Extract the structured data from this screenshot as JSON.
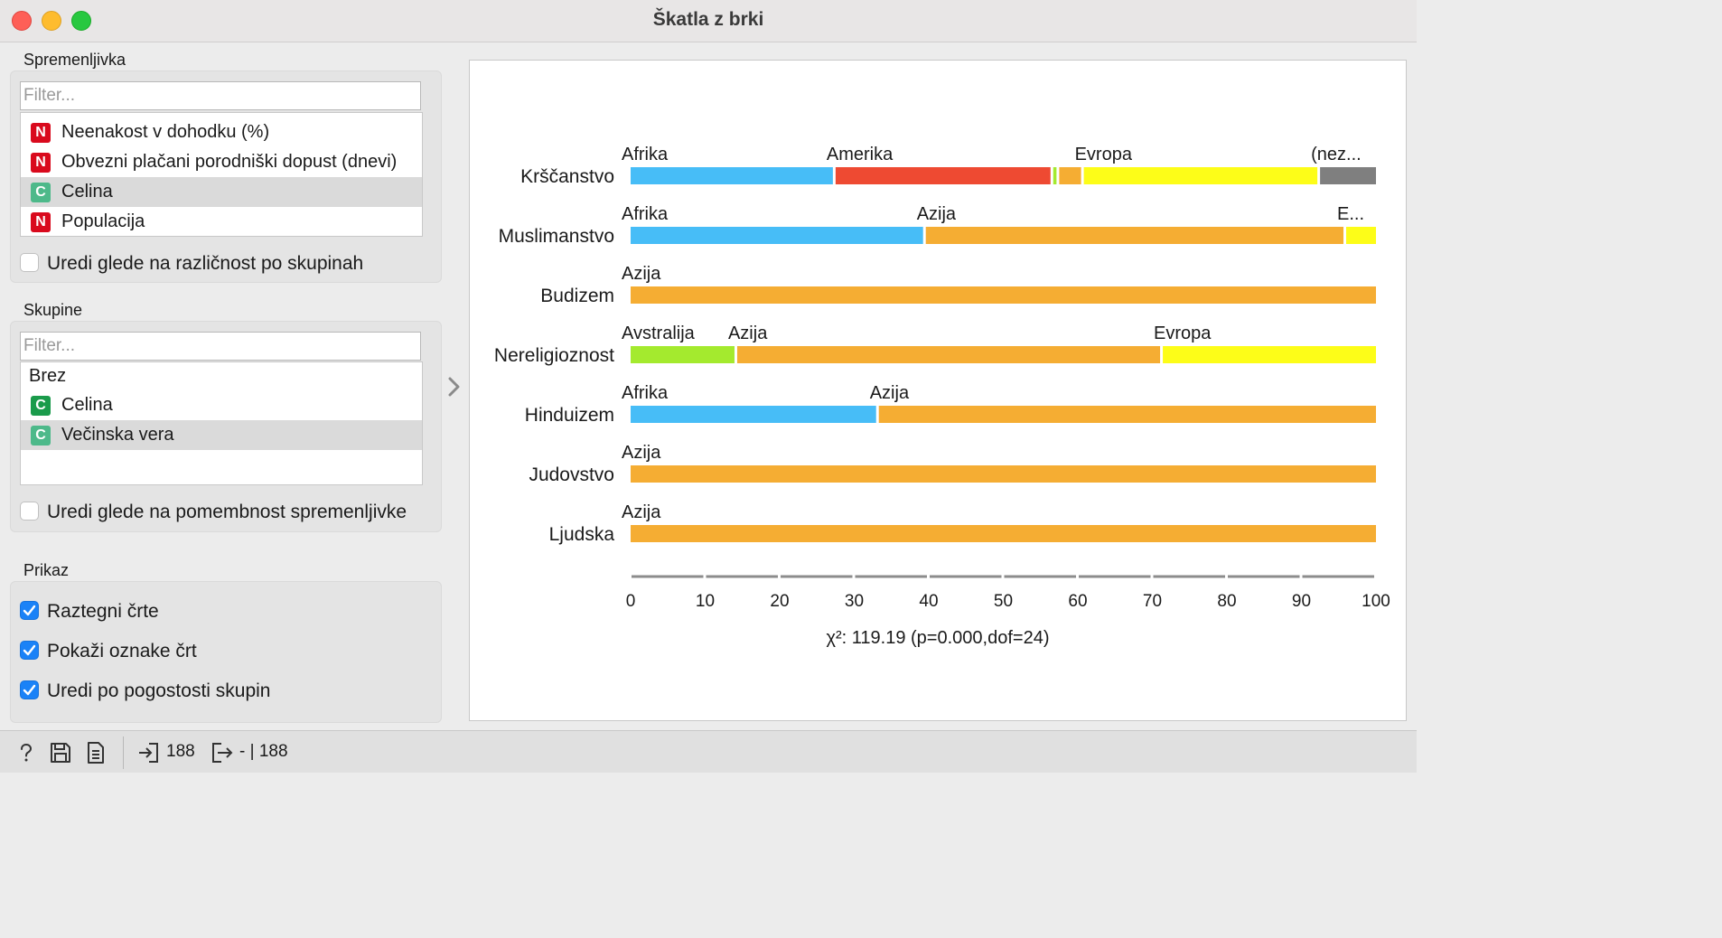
{
  "window": {
    "title": "Škatla z brki"
  },
  "variable_section": {
    "label": "Spremenljivka",
    "filter_placeholder": "Filter...",
    "items": [
      {
        "type": "N",
        "label": "Neenakost v dohodku (%)",
        "selected": false
      },
      {
        "type": "N",
        "label": "Obvezni plačani porodniški dopust (dnevi)",
        "selected": false
      },
      {
        "type": "C",
        "label": "Celina",
        "selected": true
      },
      {
        "type": "N",
        "label": "Populacija",
        "selected": false
      }
    ],
    "order_checkbox": {
      "label": "Uredi glede na različnost po skupinah",
      "checked": false
    }
  },
  "groups_section": {
    "label": "Skupine",
    "filter_placeholder": "Filter...",
    "items": [
      {
        "type": "",
        "label": "Brez",
        "selected": false
      },
      {
        "type": "C",
        "label": "Celina",
        "selected": false
      },
      {
        "type": "C",
        "label": "Večinska vera",
        "selected": true
      }
    ],
    "order_checkbox": {
      "label": "Uredi glede na pomembnost spremenljivke",
      "checked": false
    }
  },
  "display_section": {
    "label": "Prikaz",
    "checkboxes": [
      {
        "label": "Raztegni črte",
        "checked": true
      },
      {
        "label": "Pokaži oznake črt",
        "checked": true
      },
      {
        "label": "Uredi po pogostosti skupin",
        "checked": true
      }
    ]
  },
  "chart_data": {
    "type": "bar",
    "orientation": "horizontal",
    "stacked": true,
    "xlim": [
      0,
      100
    ],
    "ticks": [
      "0",
      "10",
      "20",
      "30",
      "40",
      "50",
      "60",
      "70",
      "80",
      "90",
      "100"
    ],
    "statistic": "χ²: 119.19 (p=0.000,dof=24)",
    "colors": {
      "Afrika": "#47bdf7",
      "Amerika": "#ee4a32",
      "Avstralija": "#a4ea2e",
      "Azija": "#f5ad33",
      "Evropa": "#fdfd18",
      "(nez...": "#7f7f7f"
    },
    "rows": [
      {
        "category": "Krščanstvo",
        "segments": [
          {
            "group": "Afrika",
            "value": 27.5,
            "label": "Afrika"
          },
          {
            "group": "Amerika",
            "value": 29.2,
            "label": "Amerika"
          },
          {
            "group": "Avstralija",
            "value": 0.8,
            "label": ""
          },
          {
            "group": "Azija",
            "value": 3.3,
            "label": ""
          },
          {
            "group": "Evropa",
            "value": 31.7,
            "label": "Evropa"
          },
          {
            "group": "(nez...",
            "value": 7.5,
            "label": "(nez..."
          }
        ]
      },
      {
        "category": "Muslimanstvo",
        "segments": [
          {
            "group": "Afrika",
            "value": 39.6,
            "label": "Afrika"
          },
          {
            "group": "Azija",
            "value": 56.4,
            "label": "Azija"
          },
          {
            "group": "Evropa",
            "value": 4.0,
            "label": "E..."
          }
        ]
      },
      {
        "category": "Budizem",
        "segments": [
          {
            "group": "Azija",
            "value": 100,
            "label": "Azija"
          }
        ]
      },
      {
        "category": "Nereligioznost",
        "segments": [
          {
            "group": "Avstralija",
            "value": 14.3,
            "label": "Avstralija"
          },
          {
            "group": "Azija",
            "value": 57.1,
            "label": "Azija"
          },
          {
            "group": "Evropa",
            "value": 28.6,
            "label": "Evropa"
          }
        ]
      },
      {
        "category": "Hinduizem",
        "segments": [
          {
            "group": "Afrika",
            "value": 33.3,
            "label": "Afrika"
          },
          {
            "group": "Azija",
            "value": 66.7,
            "label": "Azija"
          }
        ]
      },
      {
        "category": "Judovstvo",
        "segments": [
          {
            "group": "Azija",
            "value": 100,
            "label": "Azija"
          }
        ]
      },
      {
        "category": "Ljudska",
        "segments": [
          {
            "group": "Azija",
            "value": 100,
            "label": "Azija"
          }
        ]
      }
    ]
  },
  "statusbar": {
    "input_count": "188",
    "output_count": "- | 188"
  }
}
